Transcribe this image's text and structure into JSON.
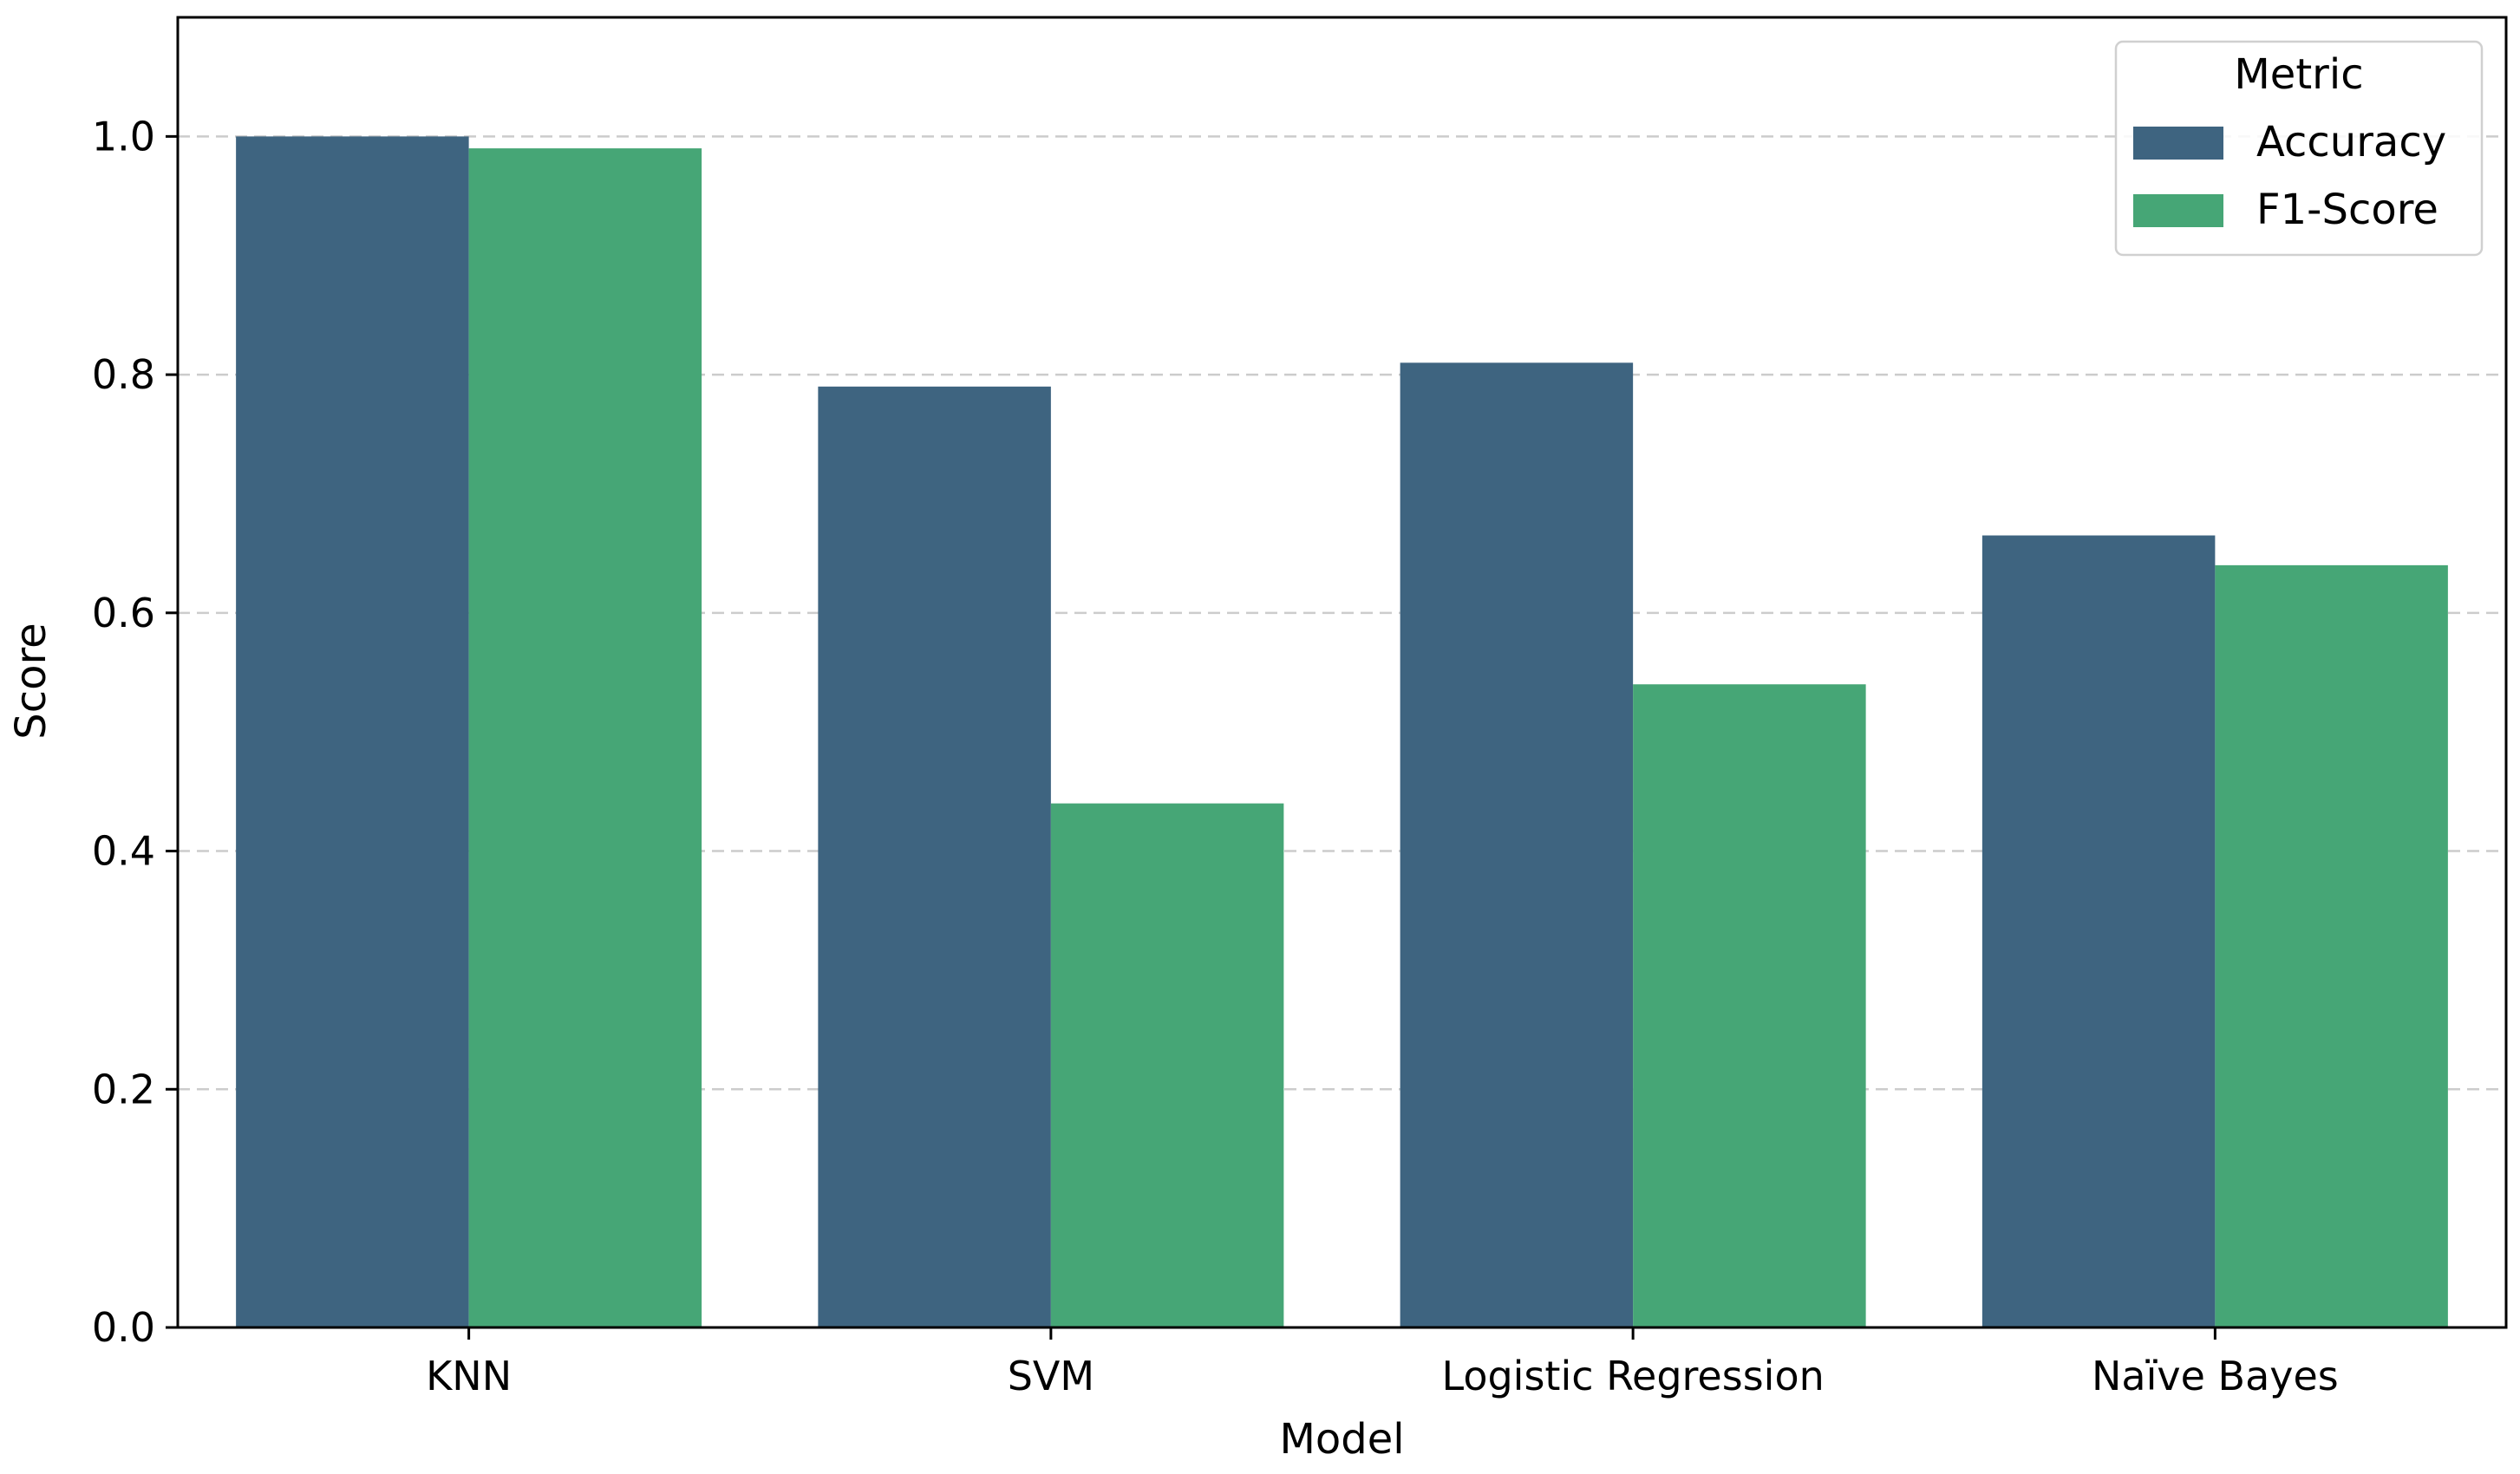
{
  "chart_data": {
    "type": "bar",
    "title": "",
    "xlabel": "Model",
    "ylabel": "Score",
    "categories": [
      "KNN",
      "SVM",
      "Logistic Regression",
      "Naïve Bayes"
    ],
    "series": [
      {
        "name": "Accuracy",
        "color": "#3e6480",
        "values": [
          1.0,
          0.79,
          0.81,
          0.665
        ]
      },
      {
        "name": "F1-Score",
        "color": "#46a676",
        "values": [
          0.99,
          0.44,
          0.54,
          0.64
        ]
      }
    ],
    "ylim": [
      0,
      1.1
    ],
    "yticks": [
      "0.0",
      "0.2",
      "0.4",
      "0.6",
      "0.8",
      "1.0"
    ],
    "grid": {
      "axis": "y",
      "style": "dashed",
      "color": "#cccccc"
    },
    "legend": {
      "title": "Metric",
      "placement": "top-right"
    }
  }
}
